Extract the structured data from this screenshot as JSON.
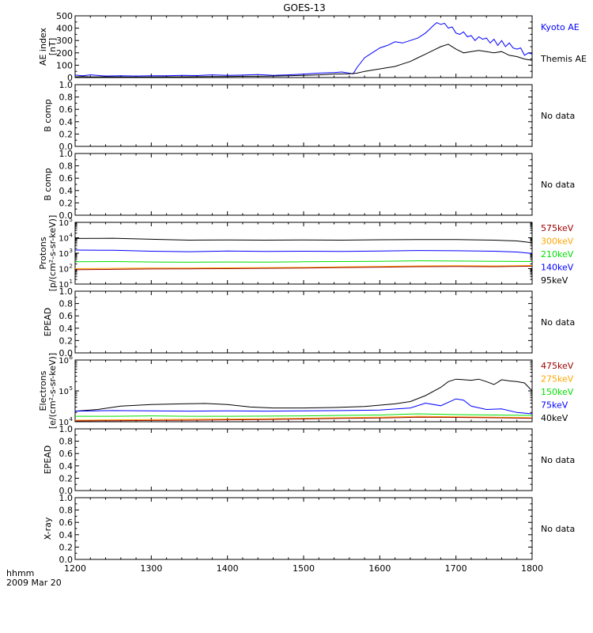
{
  "title": "GOES-13",
  "x_axis": {
    "unit_label": "hhmm",
    "date_label": "2009 Mar 20",
    "range": [
      1200,
      1800
    ],
    "ticks": [
      {
        "value": 1200,
        "label": "1200"
      },
      {
        "value": 1300,
        "label": "1300"
      },
      {
        "value": 1400,
        "label": "1400"
      },
      {
        "value": 1500,
        "label": "1500"
      },
      {
        "value": 1600,
        "label": "1600"
      },
      {
        "value": 1700,
        "label": "1700"
      },
      {
        "value": 1800,
        "label": "1800"
      }
    ]
  },
  "colors": {
    "kyoto": "#0000ff",
    "themis": "#000000",
    "ch_575keV": "#9b0000",
    "ch_300keV": "#ffa500",
    "ch_210keV": "#00e000",
    "ch_140keV": "#0000ff",
    "ch_95keV": "#000000"
  },
  "chart_data": [
    {
      "id": "ae",
      "type": "line",
      "ylabel": "AE index [nT]",
      "ylabel_lines": [
        "AE index",
        "[nT]"
      ],
      "ylim": [
        0,
        500
      ],
      "yscale": "linear",
      "yticks": [
        {
          "value": 0,
          "label": "0"
        },
        {
          "value": 100,
          "label": "100"
        },
        {
          "value": 200,
          "label": "200"
        },
        {
          "value": 300,
          "label": "300"
        },
        {
          "value": 400,
          "label": "400"
        },
        {
          "value": 500,
          "label": "500"
        }
      ],
      "series": [
        {
          "name": "Kyoto AE",
          "color": "#0000ff",
          "x": [
            1200,
            1210,
            1220,
            1240,
            1260,
            1280,
            1300,
            1320,
            1340,
            1360,
            1380,
            1400,
            1420,
            1440,
            1460,
            1480,
            1500,
            1520,
            1540,
            1550,
            1560,
            1565,
            1570,
            1580,
            1590,
            1600,
            1610,
            1620,
            1630,
            1640,
            1650,
            1660,
            1665,
            1670,
            1675,
            1680,
            1685,
            1690,
            1695,
            1700,
            1705,
            1710,
            1715,
            1720,
            1725,
            1730,
            1735,
            1740,
            1745,
            1750,
            1755,
            1760,
            1765,
            1770,
            1775,
            1780,
            1785,
            1790,
            1795,
            1800
          ],
          "y": [
            20,
            15,
            22,
            12,
            15,
            12,
            14,
            15,
            18,
            16,
            22,
            18,
            20,
            24,
            18,
            22,
            28,
            36,
            40,
            45,
            35,
            30,
            80,
            160,
            200,
            240,
            260,
            290,
            280,
            300,
            320,
            360,
            390,
            420,
            445,
            430,
            440,
            400,
            410,
            360,
            350,
            370,
            330,
            340,
            300,
            330,
            310,
            320,
            280,
            310,
            260,
            300,
            250,
            280,
            240,
            230,
            240,
            180,
            200,
            190
          ]
        },
        {
          "name": "Themis AE",
          "color": "#000000",
          "x": [
            1200,
            1210,
            1220,
            1240,
            1260,
            1280,
            1300,
            1320,
            1340,
            1360,
            1380,
            1400,
            1420,
            1440,
            1460,
            1480,
            1500,
            1520,
            1540,
            1560,
            1570,
            1580,
            1590,
            1600,
            1610,
            1620,
            1630,
            1640,
            1650,
            1660,
            1670,
            1680,
            1690,
            1700,
            1710,
            1720,
            1730,
            1740,
            1750,
            1760,
            1770,
            1780,
            1790,
            1800
          ],
          "y": [
            5,
            8,
            5,
            6,
            5,
            4,
            5,
            6,
            6,
            7,
            8,
            8,
            10,
            10,
            12,
            15,
            18,
            22,
            28,
            30,
            35,
            50,
            60,
            70,
            80,
            90,
            110,
            130,
            160,
            190,
            220,
            250,
            270,
            230,
            200,
            210,
            220,
            210,
            200,
            210,
            180,
            170,
            150,
            140
          ]
        }
      ],
      "legend": [
        {
          "label": "Kyoto AE",
          "color": "#0000ff"
        },
        {
          "label": "Themis AE",
          "color": "#000000"
        }
      ]
    },
    {
      "id": "bcomp1",
      "type": "line",
      "ylabel": "B comp",
      "ylabel_lines": [
        "B comp"
      ],
      "ylim": [
        0,
        1
      ],
      "yscale": "linear",
      "yticks": [
        {
          "value": 0,
          "label": "0.0"
        },
        {
          "value": 0.2,
          "label": "0.2"
        },
        {
          "value": 0.4,
          "label": "0.4"
        },
        {
          "value": 0.6,
          "label": "0.6"
        },
        {
          "value": 0.8,
          "label": "0.8"
        },
        {
          "value": 1.0,
          "label": "1.0"
        }
      ],
      "series": [],
      "nodata": "No data"
    },
    {
      "id": "bcomp2",
      "type": "line",
      "ylabel": "B comp",
      "ylabel_lines": [
        "B comp"
      ],
      "ylim": [
        0,
        1
      ],
      "yscale": "linear",
      "yticks": [
        {
          "value": 0,
          "label": "0.0"
        },
        {
          "value": 0.2,
          "label": "0.2"
        },
        {
          "value": 0.4,
          "label": "0.4"
        },
        {
          "value": 0.6,
          "label": "0.6"
        },
        {
          "value": 0.8,
          "label": "0.8"
        },
        {
          "value": 1.0,
          "label": "1.0"
        }
      ],
      "series": [],
      "nodata": "No data"
    },
    {
      "id": "protons",
      "type": "line",
      "ylabel": "Protons [p/(cm2-s-sr-keV)]",
      "ylabel_lines": [
        "Protons",
        "[p/(cm²-s-sr-keV)]"
      ],
      "ylim": [
        10,
        100000
      ],
      "yscale": "log",
      "yticks": [
        {
          "value": 10,
          "base": "10",
          "exp": "1"
        },
        {
          "value": 100,
          "base": "10",
          "exp": "2"
        },
        {
          "value": 1000,
          "base": "10",
          "exp": "3"
        },
        {
          "value": 10000,
          "base": "10",
          "exp": "4"
        },
        {
          "value": 100000,
          "base": "10",
          "exp": "5"
        }
      ],
      "series": [
        {
          "name": "95keV",
          "color": "#000000",
          "x": [
            1200,
            1250,
            1300,
            1350,
            1400,
            1450,
            1500,
            1550,
            1600,
            1650,
            1700,
            1750,
            1780,
            1800
          ],
          "y": [
            9000,
            9300,
            8000,
            7000,
            7300,
            7000,
            7200,
            7000,
            7400,
            7700,
            7600,
            7000,
            6200,
            4800
          ]
        },
        {
          "name": "140keV",
          "color": "#0000ff",
          "x": [
            1200,
            1250,
            1300,
            1350,
            1400,
            1450,
            1500,
            1550,
            1600,
            1650,
            1700,
            1750,
            1780,
            1800
          ],
          "y": [
            1600,
            1550,
            1350,
            1250,
            1380,
            1300,
            1350,
            1300,
            1400,
            1500,
            1450,
            1350,
            1200,
            950
          ]
        },
        {
          "name": "210keV",
          "color": "#00e000",
          "x": [
            1200,
            1250,
            1300,
            1350,
            1400,
            1450,
            1500,
            1550,
            1600,
            1650,
            1700,
            1750,
            1800
          ],
          "y": [
            280,
            290,
            270,
            260,
            270,
            265,
            280,
            290,
            300,
            320,
            310,
            300,
            290
          ]
        },
        {
          "name": "300keV",
          "color": "#ffa500",
          "x": [
            1200,
            1250,
            1300,
            1350,
            1400,
            1450,
            1500,
            1550,
            1600,
            1650,
            1700,
            1750,
            1800
          ],
          "y": [
            100,
            105,
            108,
            110,
            112,
            115,
            120,
            130,
            140,
            150,
            155,
            150,
            160
          ]
        },
        {
          "name": "575keV",
          "color": "#9b0000",
          "x": [
            1200,
            1250,
            1300,
            1350,
            1400,
            1450,
            1500,
            1550,
            1600,
            1650,
            1700,
            1750,
            1800
          ],
          "y": [
            85,
            90,
            95,
            98,
            100,
            105,
            110,
            118,
            125,
            135,
            140,
            135,
            145
          ]
        }
      ],
      "legend": [
        {
          "label": "575keV",
          "color": "#9b0000"
        },
        {
          "label": "300keV",
          "color": "#ffa500"
        },
        {
          "label": "210keV",
          "color": "#00e000"
        },
        {
          "label": "140keV",
          "color": "#0000ff"
        },
        {
          "label": "95keV",
          "color": "#000000"
        }
      ]
    },
    {
      "id": "epead1",
      "type": "line",
      "ylabel": "EPEAD",
      "ylabel_lines": [
        "EPEAD"
      ],
      "ylim": [
        0,
        1
      ],
      "yscale": "linear",
      "yticks": [
        {
          "value": 0,
          "label": "0.0"
        },
        {
          "value": 0.2,
          "label": "0.2"
        },
        {
          "value": 0.4,
          "label": "0.4"
        },
        {
          "value": 0.6,
          "label": "0.6"
        },
        {
          "value": 0.8,
          "label": "0.8"
        },
        {
          "value": 1.0,
          "label": "1.0"
        }
      ],
      "series": [],
      "nodata": "No data"
    },
    {
      "id": "electrons",
      "type": "line",
      "ylabel": "Electrons [e/(cm2-s-sr-keV)]",
      "ylabel_lines": [
        "Electrons",
        "[e/(cm²-s-sr-keV)]"
      ],
      "ylim": [
        10000,
        1000000
      ],
      "yscale": "log",
      "yticks": [
        {
          "value": 10000,
          "base": "10",
          "exp": "4"
        },
        {
          "value": 100000,
          "base": "10",
          "exp": "5"
        },
        {
          "value": 1000000,
          "base": "10",
          "exp": "6"
        }
      ],
      "series": [
        {
          "name": "40keV",
          "color": "#000000",
          "x": [
            1200,
            1230,
            1260,
            1300,
            1340,
            1370,
            1400,
            1430,
            1460,
            1500,
            1540,
            1580,
            1620,
            1640,
            1660,
            1680,
            1690,
            1700,
            1710,
            1720,
            1730,
            1740,
            1750,
            1760,
            1770,
            1780,
            1790,
            1800
          ],
          "y": [
            22000,
            25000,
            32000,
            36000,
            38000,
            39000,
            36000,
            30000,
            28000,
            28000,
            29000,
            31000,
            38000,
            45000,
            70000,
            130000,
            200000,
            240000,
            230000,
            220000,
            240000,
            200000,
            160000,
            230000,
            210000,
            200000,
            180000,
            100000
          ]
        },
        {
          "name": "75keV",
          "color": "#0000ff",
          "x": [
            1200,
            1250,
            1300,
            1350,
            1400,
            1450,
            1500,
            1550,
            1600,
            1640,
            1660,
            1680,
            1700,
            1710,
            1720,
            1740,
            1760,
            1780,
            1800
          ],
          "y": [
            22000,
            23000,
            22500,
            22000,
            22500,
            22000,
            22500,
            23000,
            24000,
            28000,
            40000,
            33000,
            55000,
            50000,
            32000,
            25000,
            26000,
            20000,
            18000
          ]
        },
        {
          "name": "150keV",
          "color": "#00e000",
          "x": [
            1200,
            1250,
            1300,
            1350,
            1400,
            1450,
            1500,
            1550,
            1600,
            1650,
            1700,
            1750,
            1800
          ],
          "y": [
            15000,
            15000,
            15500,
            15000,
            15000,
            15200,
            15500,
            16000,
            16500,
            18000,
            17000,
            16500,
            16000
          ]
        },
        {
          "name": "275keV",
          "color": "#ffa500",
          "x": [
            1200,
            1250,
            1300,
            1350,
            1400,
            1450,
            1500,
            1550,
            1600,
            1650,
            1700,
            1750,
            1800
          ],
          "y": [
            11200,
            11500,
            11800,
            12000,
            12200,
            12500,
            13000,
            13500,
            14000,
            15000,
            14500,
            14000,
            13500
          ]
        },
        {
          "name": "475keV",
          "color": "#9b0000",
          "x": [
            1200,
            1250,
            1300,
            1350,
            1400,
            1450,
            1500,
            1550,
            1600,
            1650,
            1700,
            1750,
            1800
          ],
          "y": [
            10600,
            10800,
            11000,
            11200,
            11500,
            11800,
            12300,
            12800,
            13200,
            14000,
            13800,
            13400,
            13000
          ]
        }
      ],
      "legend": [
        {
          "label": "475keV",
          "color": "#9b0000"
        },
        {
          "label": "275keV",
          "color": "#ffa500"
        },
        {
          "label": "150keV",
          "color": "#00e000"
        },
        {
          "label": "75keV",
          "color": "#0000ff"
        },
        {
          "label": "40keV",
          "color": "#000000"
        }
      ]
    },
    {
      "id": "epead2",
      "type": "line",
      "ylabel": "EPEAD",
      "ylabel_lines": [
        "EPEAD"
      ],
      "ylim": [
        0,
        1
      ],
      "yscale": "linear",
      "yticks": [
        {
          "value": 0,
          "label": "0.0"
        },
        {
          "value": 0.2,
          "label": "0.2"
        },
        {
          "value": 0.4,
          "label": "0.4"
        },
        {
          "value": 0.6,
          "label": "0.6"
        },
        {
          "value": 0.8,
          "label": "0.8"
        },
        {
          "value": 1.0,
          "label": "1.0"
        }
      ],
      "series": [],
      "nodata": "No data"
    },
    {
      "id": "xray",
      "type": "line",
      "ylabel": "X-ray",
      "ylabel_lines": [
        "X-ray"
      ],
      "ylim": [
        0,
        1
      ],
      "yscale": "linear",
      "yticks": [
        {
          "value": 0,
          "label": "0.0"
        },
        {
          "value": 0.2,
          "label": "0.2"
        },
        {
          "value": 0.4,
          "label": "0.4"
        },
        {
          "value": 0.6,
          "label": "0.6"
        },
        {
          "value": 0.8,
          "label": "0.8"
        },
        {
          "value": 1.0,
          "label": "1.0"
        }
      ],
      "series": [],
      "nodata": "No data"
    }
  ]
}
